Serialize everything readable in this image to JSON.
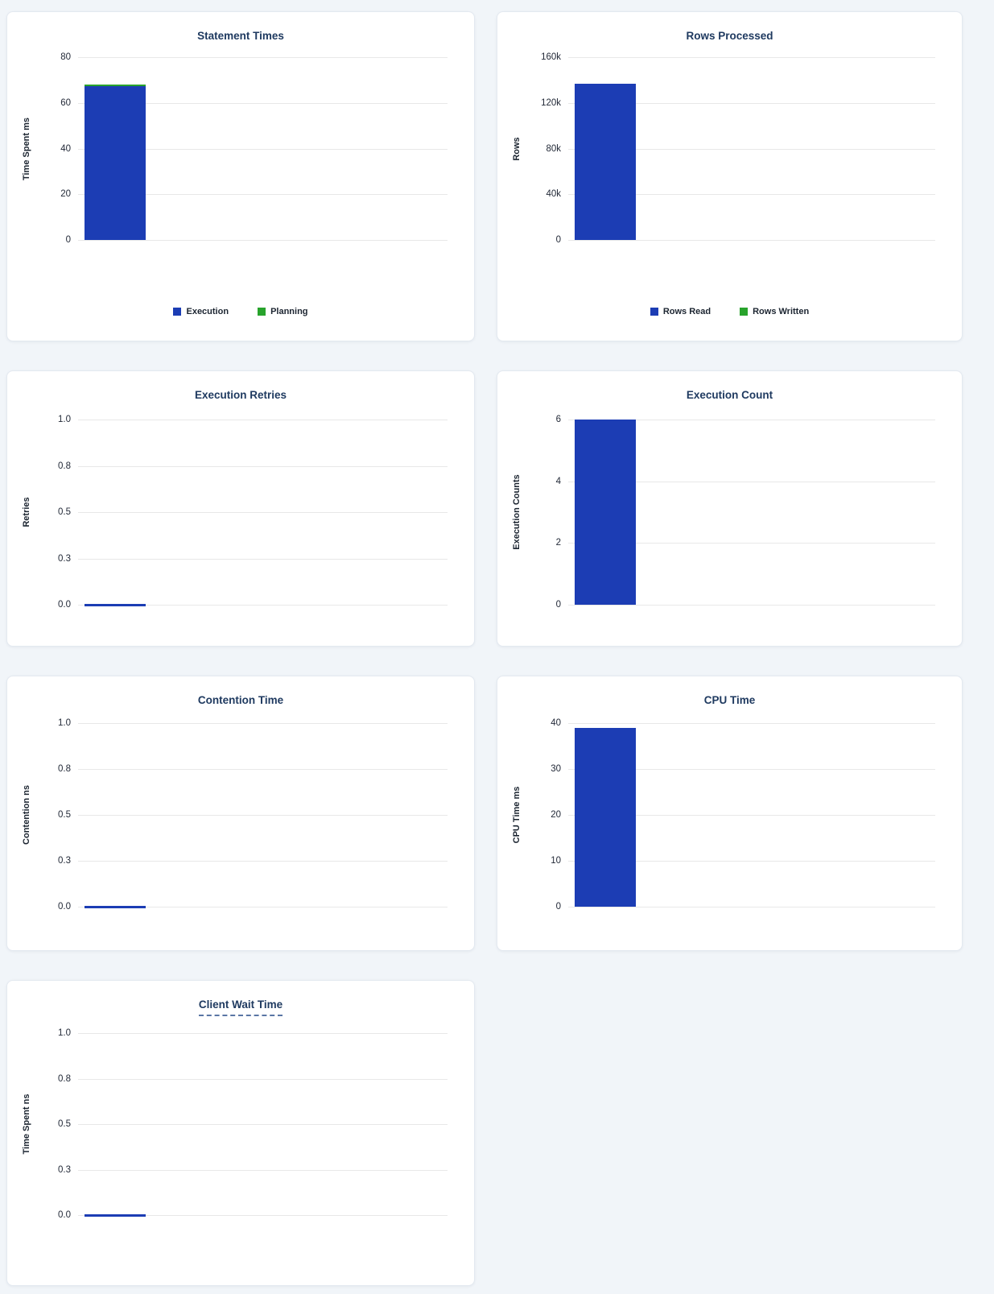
{
  "colors": {
    "page_background": "#f1f5f9",
    "card_background": "#ffffff",
    "card_border": "#e3e9f0",
    "title_text": "#1f3a60",
    "tick_text": "#232a38",
    "axis_label_text": "#1b2430",
    "gridline": "#e8e8e8",
    "bar_blue": "#1c3db4",
    "bar_green": "#28a32c",
    "tooltip_underline": "#5a76a5"
  },
  "chart_data": [
    {
      "id": "statement-times",
      "type": "bar",
      "title": "Statement Times",
      "ylabel": "Time Spent ms",
      "ylim": [
        0,
        80
      ],
      "yticks": [
        "80",
        "60",
        "40",
        "20",
        "0"
      ],
      "grid": true,
      "stacked": true,
      "legend_position": "bottom",
      "series": [
        {
          "name": "Execution",
          "color": "blue",
          "value": 67.4
        },
        {
          "name": "Planning",
          "color": "green",
          "value": 0.6
        }
      ],
      "legend": [
        {
          "label": "Execution",
          "color": "blue"
        },
        {
          "label": "Planning",
          "color": "green"
        }
      ],
      "title_tooltip": false
    },
    {
      "id": "rows-processed",
      "type": "bar",
      "title": "Rows Processed",
      "ylabel": "Rows",
      "ylim": [
        0,
        160000
      ],
      "yticks": [
        "160k",
        "120k",
        "80k",
        "40k",
        "0"
      ],
      "grid": true,
      "stacked": true,
      "legend_position": "bottom",
      "series": [
        {
          "name": "Rows Read",
          "color": "blue",
          "value": 137000
        },
        {
          "name": "Rows Written",
          "color": "green",
          "value": 0
        }
      ],
      "legend": [
        {
          "label": "Rows Read",
          "color": "blue"
        },
        {
          "label": "Rows Written",
          "color": "green"
        }
      ],
      "title_tooltip": false
    },
    {
      "id": "execution-retries",
      "type": "bar",
      "title": "Execution Retries",
      "ylabel": "Retries",
      "ylim": [
        0,
        1
      ],
      "yticks": [
        "1.0",
        "0.8",
        "0.5",
        "0.3",
        "0.0"
      ],
      "grid": true,
      "stacked": false,
      "series": [
        {
          "name": "Retries",
          "color": "blue",
          "value": 0
        }
      ],
      "title_tooltip": false
    },
    {
      "id": "execution-count",
      "type": "bar",
      "title": "Execution Count",
      "ylabel": "Execution Counts",
      "ylim": [
        0,
        6
      ],
      "yticks": [
        "6",
        "4",
        "2",
        "0"
      ],
      "grid": true,
      "stacked": false,
      "series": [
        {
          "name": "Execution Counts",
          "color": "blue",
          "value": 6
        }
      ],
      "title_tooltip": false
    },
    {
      "id": "contention-time",
      "type": "bar",
      "title": "Contention Time",
      "ylabel": "Contention ns",
      "ylim": [
        0,
        1
      ],
      "yticks": [
        "1.0",
        "0.8",
        "0.5",
        "0.3",
        "0.0"
      ],
      "grid": true,
      "stacked": false,
      "series": [
        {
          "name": "Contention",
          "color": "blue",
          "value": 0
        }
      ],
      "title_tooltip": false
    },
    {
      "id": "cpu-time",
      "type": "bar",
      "title": "CPU Time",
      "ylabel": "CPU Time ms",
      "ylim": [
        0,
        40
      ],
      "yticks": [
        "40",
        "30",
        "20",
        "10",
        "0"
      ],
      "grid": true,
      "stacked": false,
      "series": [
        {
          "name": "CPU Time",
          "color": "blue",
          "value": 39
        }
      ],
      "title_tooltip": false
    },
    {
      "id": "client-wait-time",
      "type": "bar",
      "title": "Client Wait Time",
      "ylabel": "Time Spent ns",
      "ylim": [
        0,
        1
      ],
      "yticks": [
        "1.0",
        "0.8",
        "0.5",
        "0.3",
        "0.0"
      ],
      "grid": true,
      "stacked": false,
      "series": [
        {
          "name": "Time Spent",
          "color": "blue",
          "value": 0
        }
      ],
      "title_tooltip": true
    }
  ]
}
